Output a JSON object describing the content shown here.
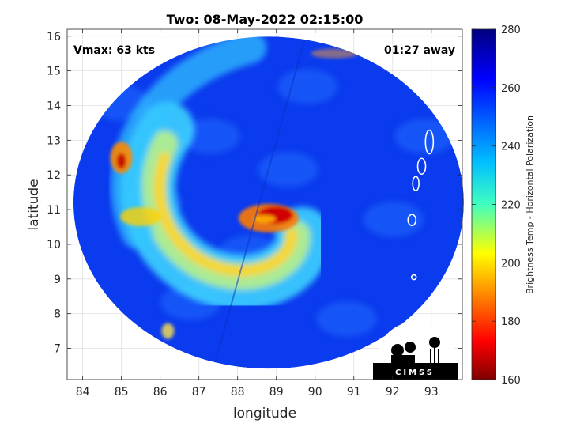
{
  "chart_data": {
    "type": "heatmap",
    "title": "Two: 08-May-2022 02:15:00",
    "xlabel": "longitude",
    "ylabel": "latitude",
    "xlim": [
      83.6,
      93.8
    ],
    "ylim": [
      6.1,
      16.2
    ],
    "xticks": [
      "84",
      "85",
      "86",
      "87",
      "88",
      "89",
      "90",
      "91",
      "92",
      "93"
    ],
    "yticks": [
      "7",
      "8",
      "9",
      "10",
      "11",
      "12",
      "13",
      "14",
      "15",
      "16"
    ],
    "grid": true,
    "annotations": {
      "vmax": "Vmax: 63 kts",
      "away": "01:27 away"
    },
    "colorbar": {
      "label": "Brightness Temp - Horizontal Polarization",
      "range": [
        160,
        280
      ],
      "ticks": [
        "160",
        "180",
        "200",
        "220",
        "240",
        "260",
        "280"
      ],
      "colormap": "jet"
    },
    "storm_center": {
      "lon": 88.9,
      "lat": 10.8
    },
    "swath_center": {
      "lon": 88.8,
      "lat": 11.2
    },
    "logo_text": "CIMSS"
  },
  "colors": {
    "background_field": "#0a3cf0",
    "coast": "#ffffff",
    "grid": "#d9d9d9"
  }
}
